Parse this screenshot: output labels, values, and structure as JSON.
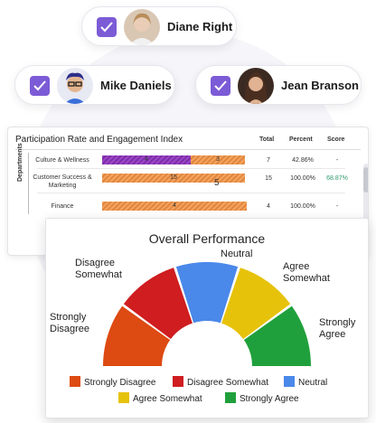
{
  "users": [
    {
      "name": "Diane Right",
      "checked": true
    },
    {
      "name": "Mike Daniels",
      "checked": true
    },
    {
      "name": "Jean Branson",
      "checked": true
    }
  ],
  "participation": {
    "title": "Participation Rate and Engagement Index",
    "headers": {
      "total": "Total",
      "percent": "Percent",
      "score": "Score"
    },
    "axis_label": "Departments",
    "rows": [
      {
        "label": "Culture & Wellness",
        "purple": "4",
        "orange": "3",
        "total": "7",
        "percent": "42.86%",
        "score": "-"
      },
      {
        "label": "Customer Success & Marketing",
        "purple": "",
        "orange": "15",
        "total": "15",
        "percent": "100.00%",
        "score": "68.87%"
      },
      {
        "label": "Finance",
        "purple": "",
        "orange": "4",
        "total": "4",
        "percent": "100.00%",
        "score": "-"
      }
    ],
    "stray_value": "5"
  },
  "chart_data": {
    "type": "gauge",
    "title": "Overall Performance",
    "segments": [
      {
        "name": "Strongly Disagree",
        "color": "#dd4a12"
      },
      {
        "name": "Disagree Somewhat",
        "color": "#cf1d20"
      },
      {
        "name": "Neutral",
        "color": "#4a88ea"
      },
      {
        "name": "Agree Somewhat",
        "color": "#e6c20b"
      },
      {
        "name": "Strongly Agree",
        "color": "#20a03c"
      }
    ],
    "arc_labels": {
      "strongly_disagree": [
        "Strongly",
        "Disagree"
      ],
      "disagree_somewhat": [
        "Disagree",
        "Somewhat"
      ],
      "neutral": [
        "Neutral"
      ],
      "agree_somewhat": [
        "Agree",
        "Somewhat"
      ],
      "strongly_agree": [
        "Strongly",
        "Agree"
      ]
    }
  }
}
